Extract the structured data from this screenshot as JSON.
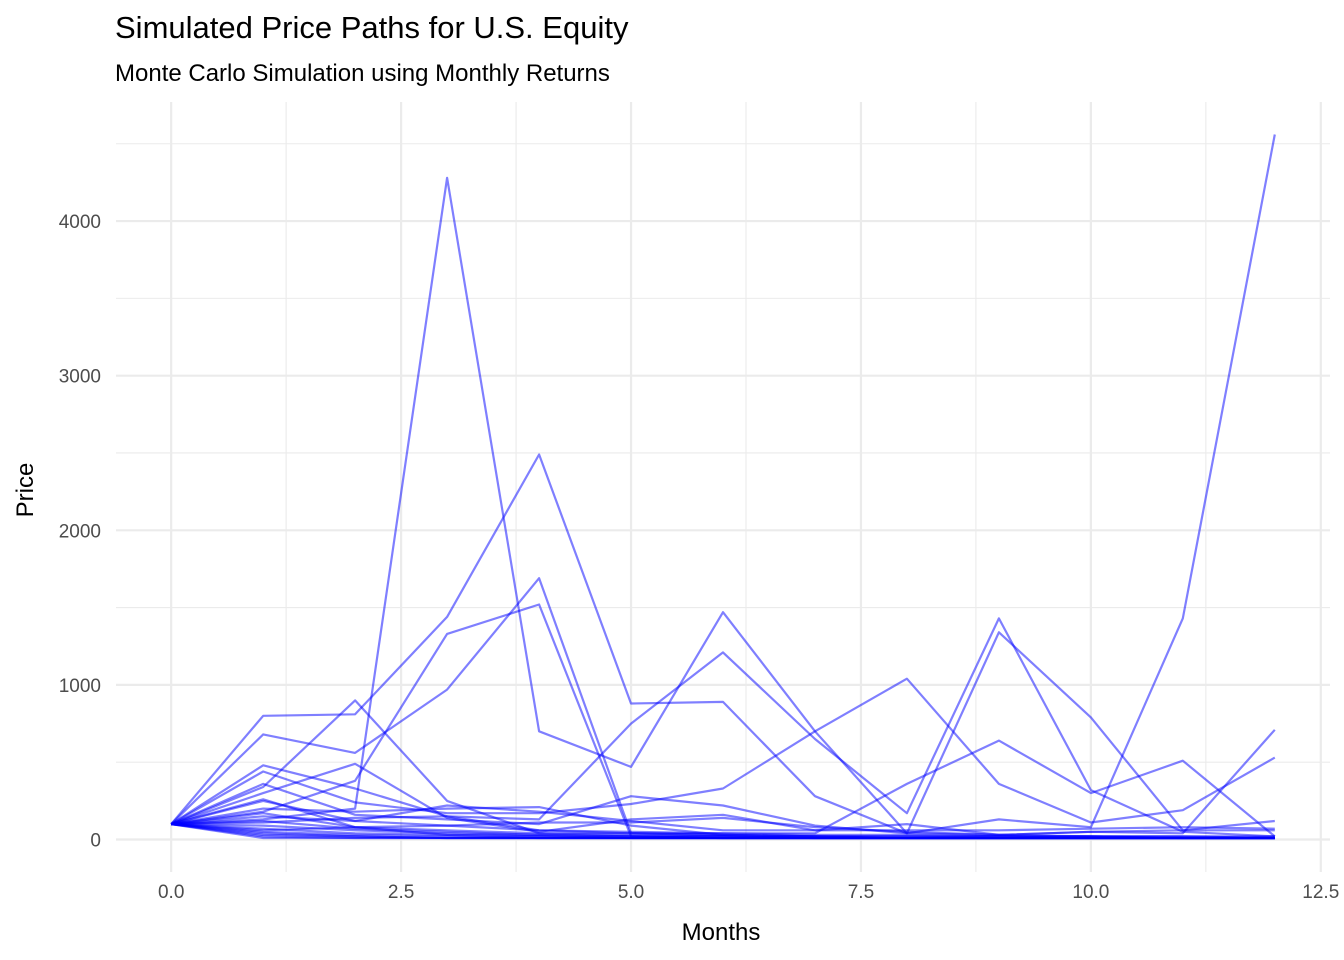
{
  "chart_data": {
    "type": "line",
    "title": "Simulated Price Paths for U.S. Equity",
    "subtitle": "Monte Carlo Simulation using Monthly Returns",
    "xlabel": "Months",
    "ylabel": "Price",
    "xlim": [
      -0.6,
      12.6
    ],
    "ylim": [
      -210,
      4770
    ],
    "x_ticks": [
      0,
      2.5,
      5,
      7.5,
      10,
      12.5
    ],
    "x_tick_labels": [
      "0.0",
      "2.5",
      "5.0",
      "7.5",
      "10.0",
      "12.5"
    ],
    "y_ticks": [
      0,
      1000,
      2000,
      3000,
      4000
    ],
    "y_tick_labels": [
      "0",
      "1000",
      "2000",
      "3000",
      "4000"
    ],
    "grid": true,
    "line_color": "#0000ff",
    "line_opacity": 0.5,
    "x": [
      0,
      1,
      2,
      3,
      4,
      5,
      6,
      7,
      8,
      9,
      10,
      11,
      12
    ],
    "series": [
      {
        "values": [
          100,
          130,
          200,
          4280,
          700,
          470,
          1470,
          700,
          40,
          130,
          80,
          1430,
          4560
        ]
      },
      {
        "values": [
          100,
          800,
          810,
          1440,
          2490,
          880,
          890,
          280,
          40,
          1340,
          790,
          60,
          120
        ]
      },
      {
        "values": [
          100,
          180,
          380,
          1330,
          1520,
          20,
          10,
          10,
          10,
          10,
          10,
          10,
          10
        ]
      },
      {
        "values": [
          100,
          680,
          560,
          970,
          1690,
          40,
          30,
          20,
          20,
          20,
          20,
          20,
          20
        ]
      },
      {
        "values": [
          100,
          480,
          330,
          150,
          130,
          750,
          1210,
          650,
          170,
          1430,
          320,
          50,
          20
        ]
      },
      {
        "values": [
          100,
          440,
          240,
          170,
          170,
          230,
          330,
          700,
          1040,
          360,
          110,
          190,
          530
        ]
      },
      {
        "values": [
          100,
          340,
          900,
          250,
          40,
          40,
          40,
          40,
          360,
          640,
          300,
          510,
          20
        ]
      },
      {
        "values": [
          100,
          360,
          160,
          130,
          100,
          280,
          220,
          90,
          40,
          30,
          50,
          40,
          710
        ]
      },
      {
        "values": [
          100,
          300,
          490,
          140,
          50,
          130,
          160,
          60,
          100,
          30,
          50,
          60,
          60
        ]
      },
      {
        "values": [
          100,
          250,
          120,
          220,
          180,
          120,
          60,
          60,
          60,
          60,
          70,
          80,
          70
        ]
      },
      {
        "values": [
          100,
          200,
          180,
          200,
          210,
          90,
          30,
          20,
          20,
          20,
          20,
          20,
          10
        ]
      },
      {
        "values": [
          100,
          150,
          120,
          90,
          60,
          50,
          40,
          30,
          30,
          20,
          20,
          10,
          10
        ]
      },
      {
        "values": [
          100,
          120,
          70,
          50,
          30,
          20,
          20,
          10,
          10,
          10,
          10,
          10,
          10
        ]
      },
      {
        "values": [
          100,
          90,
          60,
          40,
          30,
          20,
          20,
          10,
          10,
          10,
          10,
          10,
          10
        ]
      },
      {
        "values": [
          100,
          70,
          40,
          30,
          20,
          10,
          10,
          10,
          10,
          10,
          10,
          10,
          10
        ]
      },
      {
        "values": [
          100,
          50,
          30,
          20,
          10,
          10,
          10,
          10,
          10,
          10,
          10,
          10,
          10
        ]
      },
      {
        "values": [
          100,
          40,
          20,
          10,
          10,
          10,
          10,
          10,
          10,
          10,
          10,
          10,
          10
        ]
      },
      {
        "values": [
          100,
          30,
          20,
          10,
          10,
          10,
          10,
          10,
          10,
          10,
          10,
          10,
          10
        ]
      },
      {
        "values": [
          100,
          20,
          10,
          10,
          10,
          10,
          10,
          10,
          10,
          10,
          10,
          10,
          10
        ]
      },
      {
        "values": [
          100,
          10,
          10,
          10,
          10,
          10,
          10,
          10,
          10,
          10,
          10,
          10,
          10
        ]
      },
      {
        "values": [
          100,
          170,
          80,
          60,
          40,
          30,
          20,
          20,
          10,
          10,
          10,
          10,
          10
        ]
      },
      {
        "values": [
          100,
          110,
          140,
          150,
          60,
          40,
          30,
          20,
          10,
          10,
          10,
          10,
          10
        ]
      },
      {
        "values": [
          100,
          260,
          80,
          30,
          20,
          20,
          10,
          10,
          10,
          10,
          10,
          10,
          10
        ]
      },
      {
        "values": [
          100,
          60,
          80,
          90,
          110,
          110,
          140,
          80,
          50,
          30,
          20,
          10,
          10
        ]
      }
    ]
  }
}
